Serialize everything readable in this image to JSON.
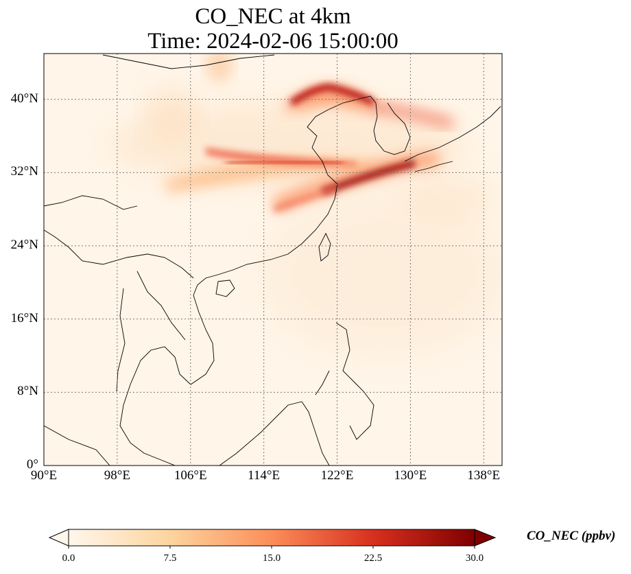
{
  "title": {
    "line1": "CO_NEC at 4km",
    "line2": "Time: 2024-02-06 15:00:00"
  },
  "map": {
    "projection": "PlateCarree",
    "lon_range": [
      90,
      140
    ],
    "lat_range": [
      0,
      45
    ],
    "gridlines": "dotted",
    "coastlines": true,
    "borders": true
  },
  "axis": {
    "lat_ticks": [
      {
        "value": 40,
        "label": "40°N"
      },
      {
        "value": 32,
        "label": "32°N"
      },
      {
        "value": 24,
        "label": "24°N"
      },
      {
        "value": 16,
        "label": "16°N"
      },
      {
        "value": 8,
        "label": "8°N"
      },
      {
        "value": 0,
        "label": "0°"
      }
    ],
    "lon_ticks": [
      {
        "value": 90,
        "label": "90°E"
      },
      {
        "value": 98,
        "label": "98°E"
      },
      {
        "value": 106,
        "label": "106°E"
      },
      {
        "value": 114,
        "label": "114°E"
      },
      {
        "value": 122,
        "label": "122°E"
      },
      {
        "value": 130,
        "label": "130°E"
      },
      {
        "value": 138,
        "label": "138°E"
      }
    ]
  },
  "colorbar": {
    "label": "CO_NEC (ppbv)",
    "colormap": "OrRd",
    "min": 0,
    "max": 30,
    "extend": "both",
    "ticks": [
      {
        "value": 0,
        "label": "0.0"
      },
      {
        "value": 7.5,
        "label": "7.5"
      },
      {
        "value": 15,
        "label": "15.0"
      },
      {
        "value": 22.5,
        "label": "22.5"
      },
      {
        "value": 30,
        "label": "30.0"
      }
    ],
    "colors": [
      "#fff7ec",
      "#fdd49e",
      "#fc8d59",
      "#d7301f",
      "#7f0000"
    ]
  },
  "plumes": [
    {
      "name": "north-china-plume",
      "peak_value": 30
    },
    {
      "name": "central-china-band",
      "peak_value": 20
    },
    {
      "name": "yangtze-to-japan-plume",
      "peak_value": 30
    },
    {
      "name": "korea-japan-sea-plume",
      "peak_value": 15
    }
  ]
}
